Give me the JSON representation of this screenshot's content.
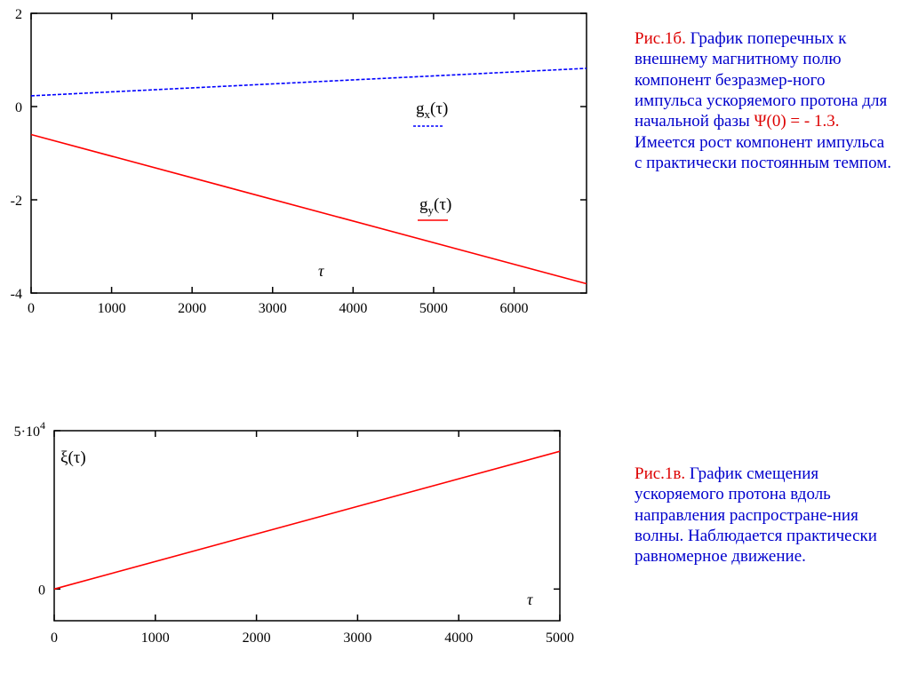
{
  "chart_data": [
    {
      "type": "line",
      "xlabel": "τ",
      "xlim": [
        0,
        6900
      ],
      "ylim": [
        -4,
        2
      ],
      "x_ticks": [
        "0",
        "1000",
        "2000",
        "3000",
        "4000",
        "5000",
        "6000"
      ],
      "y_ticks": [
        "2",
        "0",
        "-2",
        "-4"
      ],
      "series": [
        {
          "name": "gx(τ)",
          "label_main": "g",
          "label_sub": "x",
          "label_arg": "(τ)",
          "color": "#0000ff",
          "style": "dashed",
          "x": [
            0,
            6900
          ],
          "y": [
            0.23,
            0.82
          ]
        },
        {
          "name": "gy(τ)",
          "label_main": "g",
          "label_sub": "y",
          "label_arg": "(τ)",
          "color": "#ff0000",
          "style": "solid",
          "x": [
            0,
            6900
          ],
          "y": [
            -0.6,
            -3.8
          ]
        }
      ]
    },
    {
      "type": "line",
      "xlabel": "τ",
      "xlim": [
        0,
        5000
      ],
      "ylim": [
        -10000,
        50000
      ],
      "x_ticks": [
        "0",
        "1000",
        "2000",
        "3000",
        "4000",
        "5000"
      ],
      "y_ticks": [
        {
          "base": "5·10",
          "exp": "4"
        },
        {
          "base": "0",
          "exp": ""
        }
      ],
      "series": [
        {
          "name": "ξ(τ)",
          "color": "#ff0000",
          "style": "solid",
          "x": [
            0,
            5000
          ],
          "y": [
            0,
            43500
          ]
        }
      ]
    }
  ],
  "captions": {
    "c1_fig": "Рис.1б.",
    "c1_part1": " График поперечных к внешнему магнитному полю компонент безразмер-ного импульса ускоряемого протона для начальной фазы ",
    "c1_phase": "Ψ(0) = - 1.3.",
    "c1_part2": " Имеется рост компонент импульса с практически постоянным темпом.",
    "c2_fig": "Рис.1в.",
    "c2_text": " График смещения ускоряемого протона вдоль направления распростране-ния волны. Наблюдается практически равномерное движение."
  }
}
